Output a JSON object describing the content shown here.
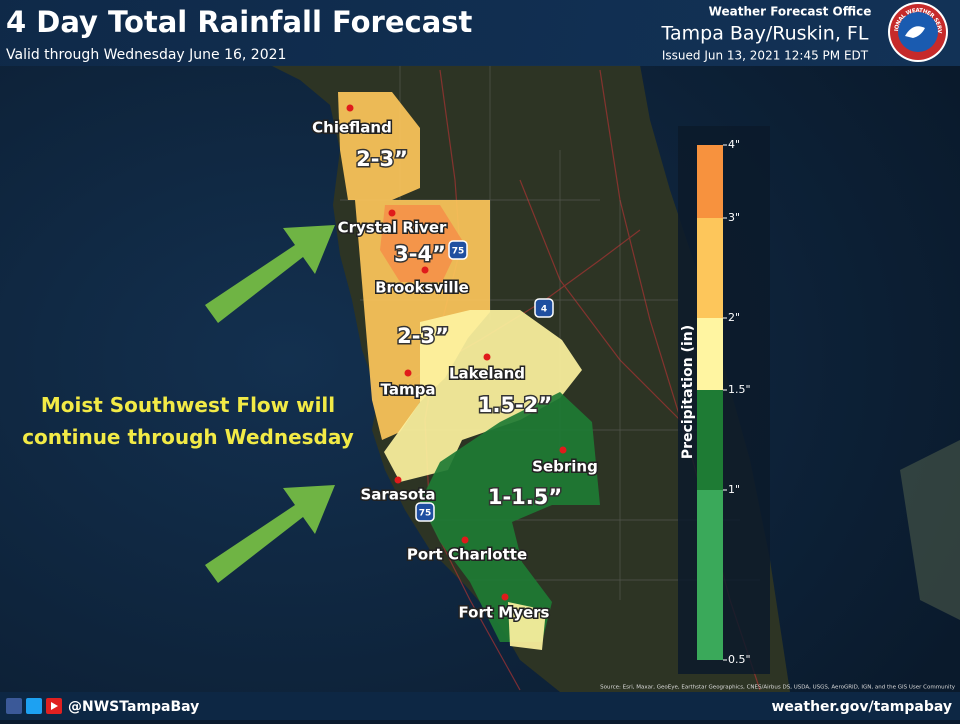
{
  "header": {
    "title": "4 Day Total Rainfall Forecast",
    "subtitle": "Valid through Wednesday June 16, 2021",
    "office_label": "Weather Forecast Office",
    "office": "Tampa Bay/Ruskin, FL",
    "issued": "Issued Jun 13, 2021 12:45 PM EDT",
    "logo_text": "NATIONAL WEATHER SERVICE"
  },
  "annotation": {
    "lines": [
      "Moist Southwest Flow will",
      "continue through Wednesday"
    ]
  },
  "cities": [
    {
      "name": "Chiefland"
    },
    {
      "name": "Crystal River"
    },
    {
      "name": "Brooksville"
    },
    {
      "name": "Tampa"
    },
    {
      "name": "Lakeland"
    },
    {
      "name": "Sebring"
    },
    {
      "name": "Sarasota"
    },
    {
      "name": "Port Charlotte"
    },
    {
      "name": "Fort Myers"
    }
  ],
  "zones": [
    {
      "label": "2-3”",
      "color": "#fdc65b"
    },
    {
      "label": "3-4”",
      "color": "#f4924a"
    },
    {
      "label": "2-3”",
      "color": "#fdc65b"
    },
    {
      "label": "1.5-2”",
      "color": "#fdf2a0"
    },
    {
      "label": "1-1.5”",
      "color": "#1e7b34"
    }
  ],
  "highways": [
    "75",
    "75",
    "4"
  ],
  "legend": {
    "title": "Precipitation (in)",
    "ticks": [
      "4\"",
      "3\"",
      "2\"",
      "1.5\"",
      "1\"",
      "0.5\""
    ],
    "colors": [
      "#f7923e",
      "#fdc65b",
      "#fff5a1",
      "#1e7b34",
      "#3aa95a"
    ]
  },
  "source": "Source: Esri, Maxar, GeoEye, Earthstar Geographics, CNES/Airbus DS, USDA, USGS, AeroGRID, IGN, and the GIS User Community",
  "footer": {
    "handle": "@NWSTampaBay",
    "url": "weather.gov/tampabay"
  }
}
